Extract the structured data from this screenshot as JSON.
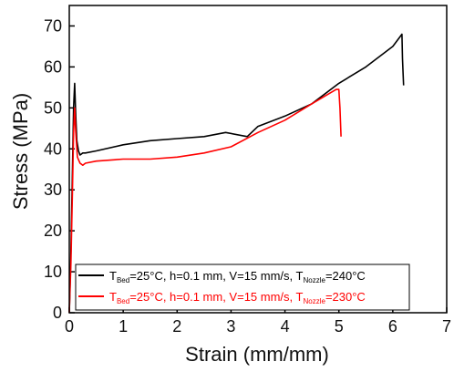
{
  "chart_data": {
    "type": "line",
    "title": "",
    "xlabel": "Strain (mm/mm)",
    "ylabel": "Stress (MPa)",
    "xlim": [
      0,
      7
    ],
    "ylim": [
      0,
      75
    ],
    "xticks": [
      "0",
      "1",
      "2",
      "3",
      "4",
      "5",
      "6",
      "7"
    ],
    "yticks": [
      "0",
      "10",
      "20",
      "30",
      "40",
      "50",
      "60",
      "70"
    ],
    "grid": false,
    "legend_position": "bottom-right",
    "series": [
      {
        "legend": {
          "t1": "T",
          "s1": "Bed",
          "m1": "=25°C, h=0.1 mm, V=15 mm/s, T",
          "s2": "Nozzle",
          "m2": "=240°C"
        },
        "color": "#000000",
        "x": [
          0.0,
          0.03,
          0.06,
          0.08,
          0.1,
          0.12,
          0.14,
          0.17,
          0.2,
          0.25,
          0.3,
          0.5,
          1.0,
          1.5,
          2.0,
          2.5,
          2.9,
          3.3,
          3.5,
          4.0,
          4.5,
          5.0,
          5.5,
          6.0,
          6.17,
          6.18,
          6.2
        ],
        "y": [
          0.0,
          15.0,
          35.0,
          50.0,
          56.0,
          48.0,
          42.0,
          39.5,
          38.5,
          39.0,
          39.0,
          39.5,
          41.0,
          42.0,
          42.5,
          43.0,
          44.0,
          43.0,
          45.5,
          48.0,
          51.0,
          56.0,
          60.0,
          65.0,
          68.0,
          62.0,
          55.5
        ]
      },
      {
        "legend": {
          "t1": "T",
          "s1": "Bed",
          "m1": "=25°C, h=0.1 mm, V=15 mm/s, T",
          "s2": "Nozzle",
          "m2": "=230°C"
        },
        "color": "#ff0000",
        "x": [
          0.0,
          0.03,
          0.06,
          0.08,
          0.1,
          0.12,
          0.15,
          0.2,
          0.25,
          0.3,
          0.5,
          1.0,
          1.5,
          2.0,
          2.5,
          3.0,
          3.5,
          4.0,
          4.5,
          4.95,
          5.0,
          5.02,
          5.04
        ],
        "y": [
          0.0,
          12.0,
          30.0,
          44.0,
          50.0,
          44.0,
          38.0,
          36.5,
          36.0,
          36.5,
          37.0,
          37.5,
          37.5,
          38.0,
          39.0,
          40.5,
          44.0,
          47.0,
          51.0,
          54.5,
          54.5,
          50.0,
          43.0
        ]
      }
    ]
  }
}
